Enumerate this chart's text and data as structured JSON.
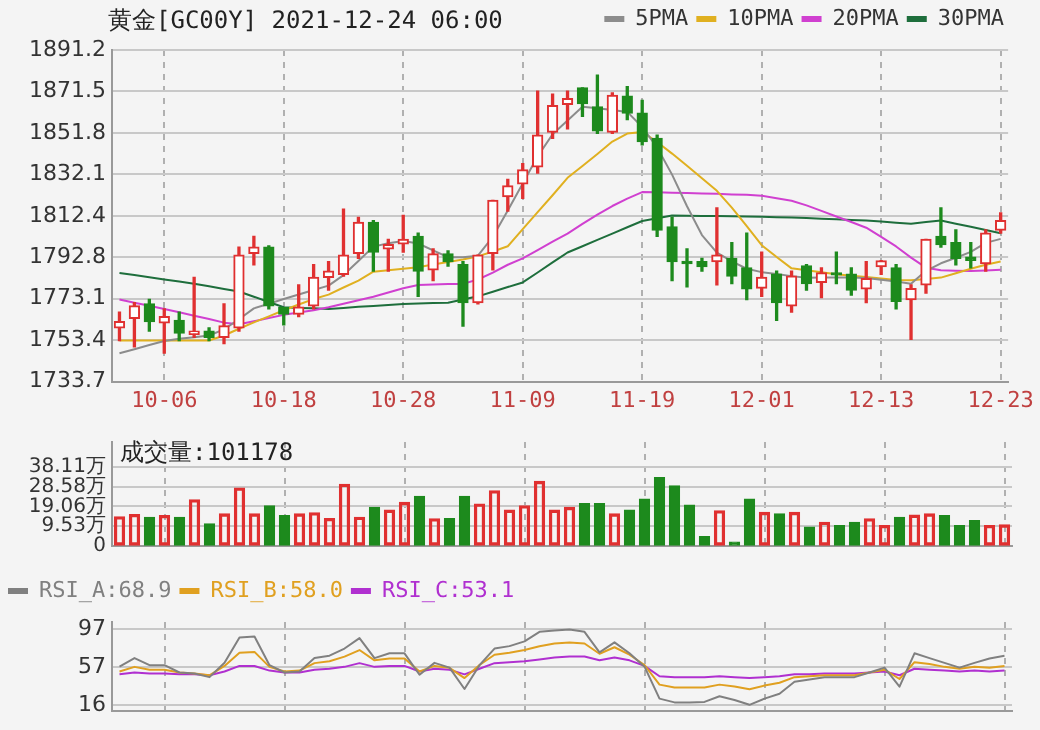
{
  "chart_data": [
    {
      "type": "candlestick",
      "title": "黄金[GC00Y] 2021-12-24 06:00",
      "categories": [
        null,
        null,
        null,
        "10-06",
        null,
        null,
        null,
        null,
        null,
        null,
        null,
        "10-18",
        null,
        null,
        null,
        null,
        null,
        null,
        null,
        "10-28",
        null,
        null,
        null,
        null,
        null,
        null,
        null,
        "11-09",
        null,
        null,
        null,
        null,
        null,
        null,
        null,
        "11-19",
        null,
        null,
        null,
        null,
        null,
        null,
        null,
        "12-01",
        null,
        null,
        null,
        null,
        null,
        null,
        null,
        "12-13",
        null,
        null,
        null,
        null,
        null,
        null,
        null,
        "12-23"
      ],
      "ohlc": [
        [
          1759.2,
          1766.7,
          1753.2,
          1762.2
        ],
        [
          1763.7,
          1771.2,
          1750.2,
          1769.7
        ],
        [
          1770.6,
          1772.7,
          1757.7,
          1762.2
        ],
        [
          1761.6,
          1768.2,
          1747.2,
          1764.6
        ],
        [
          1762.8,
          1766.7,
          1753.2,
          1756.8
        ],
        [
          1756.2,
          1783.2,
          1754.7,
          1757.7
        ],
        [
          1757.7,
          1759.2,
          1753.2,
          1754.7
        ],
        [
          1754.7,
          1770.6,
          1751.7,
          1760.1
        ],
        [
          1759.2,
          1797.6,
          1757.7,
          1793.7
        ],
        [
          1794.6,
          1802.7,
          1789.2,
          1797.6
        ],
        [
          1797.6,
          1798.2,
          1768.2,
          1769.7
        ],
        [
          1768.8,
          1768.8,
          1760.7,
          1765.8
        ],
        [
          1765.8,
          1779.6,
          1764.6,
          1769.1
        ],
        [
          1769.7,
          1789.2,
          1768.2,
          1783.2
        ],
        [
          1783.2,
          1790.7,
          1777.2,
          1786.2
        ],
        [
          1784.7,
          1815.6,
          1783.8,
          1793.7
        ],
        [
          1794.6,
          1811.7,
          1792.2,
          1809.3
        ],
        [
          1809.3,
          1810.2,
          1786.2,
          1795.2
        ],
        [
          1796.7,
          1801.2,
          1786.2,
          1798.8
        ],
        [
          1799.1,
          1812.6,
          1795.2,
          1801.2
        ],
        [
          1802.7,
          1804.2,
          1774.2,
          1786.2
        ],
        [
          1786.8,
          1796.7,
          1781.7,
          1794.3
        ],
        [
          1794.3,
          1795.8,
          1788.6,
          1790.7
        ],
        [
          1789.2,
          1790.7,
          1760.1,
          1771.2
        ],
        [
          1771.2,
          1793.7,
          1770.6,
          1793.7
        ],
        [
          1794.6,
          1819.8,
          1786.8,
          1819.8
        ],
        [
          1821.6,
          1829.7,
          1814.7,
          1826.7
        ],
        [
          1827.6,
          1837.2,
          1820.7,
          1834.2
        ],
        [
          1835.7,
          1871.7,
          1832.7,
          1850.7
        ],
        [
          1852.2,
          1870.2,
          1849.2,
          1864.8
        ],
        [
          1865.4,
          1871.7,
          1853.7,
          1868.1
        ],
        [
          1873.2,
          1873.2,
          1859.7,
          1865.7
        ],
        [
          1864.2,
          1879.2,
          1851.6,
          1852.8
        ],
        [
          1852.2,
          1870.8,
          1851.6,
          1869.6
        ],
        [
          1869.3,
          1873.8,
          1858.2,
          1861.2
        ],
        [
          1861.2,
          1867.2,
          1846.2,
          1847.7
        ],
        [
          1849.2,
          1850.7,
          1802.7,
          1805.7
        ],
        [
          1807.2,
          1811.7,
          1781.7,
          1790.7
        ],
        [
          1790.7,
          1796.7,
          1778.7,
          1789.8
        ],
        [
          1790.7,
          1792.2,
          1786.2,
          1788.3
        ],
        [
          1790.7,
          1816.2,
          1779.6,
          1793.7
        ],
        [
          1792.2,
          1799.7,
          1780.2,
          1783.8
        ],
        [
          1787.7,
          1804.2,
          1772.7,
          1777.8
        ],
        [
          1778.1,
          1795.2,
          1774.2,
          1783.2
        ],
        [
          1784.7,
          1786.2,
          1762.8,
          1771.2
        ],
        [
          1769.7,
          1786.2,
          1766.7,
          1783.8
        ],
        [
          1788.6,
          1789.2,
          1777.2,
          1780.2
        ],
        [
          1780.8,
          1787.7,
          1773.6,
          1785.3
        ],
        [
          1785.3,
          1795.2,
          1780.2,
          1784.4
        ],
        [
          1784.7,
          1787.7,
          1774.8,
          1777.2
        ],
        [
          1777.8,
          1790.7,
          1771.2,
          1782.6
        ],
        [
          1788.3,
          1791.2,
          1784.7,
          1791.0
        ],
        [
          1787.7,
          1789.2,
          1768.2,
          1771.8
        ],
        [
          1772.7,
          1779.6,
          1753.8,
          1777.8
        ],
        [
          1779.6,
          1801.2,
          1775.7,
          1801.2
        ],
        [
          1802.7,
          1816.2,
          1797.6,
          1798.8
        ],
        [
          1799.7,
          1805.7,
          1789.2,
          1792.2
        ],
        [
          1792.8,
          1799.7,
          1787.7,
          1791.3
        ],
        [
          1789.8,
          1805.7,
          1786.2,
          1804.2
        ],
        [
          1805.7,
          1813.8,
          1804.2,
          1810.2
        ]
      ],
      "colors": [
        "#e03030",
        "#e03030",
        "#1d8a1d",
        "#e03030",
        "#1d8a1d",
        "#e03030",
        "#1d8a1d",
        "#e03030",
        "#e03030",
        "#e03030",
        "#1d8a1d",
        "#1d8a1d",
        "#e03030",
        "#e03030",
        "#e03030",
        "#e03030",
        "#e03030",
        "#1d8a1d",
        "#e03030",
        "#e03030",
        "#1d8a1d",
        "#e03030",
        "#1d8a1d",
        "#1d8a1d",
        "#e03030",
        "#e03030",
        "#e03030",
        "#e03030",
        "#e03030",
        "#e03030",
        "#e03030",
        "#1d8a1d",
        "#1d8a1d",
        "#e03030",
        "#1d8a1d",
        "#1d8a1d",
        "#1d8a1d",
        "#1d8a1d",
        "#1d8a1d",
        "#1d8a1d",
        "#e03030",
        "#1d8a1d",
        "#1d8a1d",
        "#e03030",
        "#1d8a1d",
        "#e03030",
        "#1d8a1d",
        "#e03030",
        "#1d8a1d",
        "#1d8a1d",
        "#e03030",
        "#e03030",
        "#1d8a1d",
        "#e03030",
        "#e03030",
        "#1d8a1d",
        "#1d8a1d",
        "#1d8a1d",
        "#e03030",
        "#e03030"
      ],
      "series": [
        {
          "name": "5PMA",
          "type": "line",
          "color": "#8c8c8c",
          "values": [
            1747.2,
            1749.1,
            1751.1,
            1753,
            1754,
            1754.8,
            1755.6,
            1758.5,
            1763.3,
            1768.5,
            1770.7,
            1772.9,
            1775.1,
            1777.2,
            1779.3,
            1784.3,
            1791,
            1797.8,
            1799.4,
            1800.5,
            1799.3,
            1796,
            1792.8,
            1792.8,
            1793.5,
            1802.5,
            1815,
            1827.8,
            1840.7,
            1851.2,
            1857.7,
            1864.2,
            1863.5,
            1862.7,
            1861.8,
            1854.6,
            1844.9,
            1832,
            1817,
            1803.3,
            1795,
            1790.8,
            1787.3,
            1785.7,
            1784.8,
            1783.8,
            1783,
            1783.2,
            1783.2,
            1783.2,
            1782.9,
            1782.1,
            1781.2,
            1780.2,
            1786.3,
            1789.9,
            1792.5,
            1795.3,
            1799.6,
            1801.5
          ]
        },
        {
          "name": "10PMA",
          "type": "line",
          "color": "#e0b020",
          "values": [
            1753.2,
            1753.2,
            1753.2,
            1753.2,
            1753.2,
            1753.2,
            1753.2,
            1755.6,
            1758.8,
            1761.8,
            1764.7,
            1767.6,
            1770.3,
            1772.9,
            1775,
            1778.4,
            1781.7,
            1785.9,
            1786.6,
            1787.3,
            1788,
            1789.3,
            1790.5,
            1791.7,
            1793.2,
            1795.5,
            1798,
            1806.1,
            1814.2,
            1822.2,
            1830.5,
            1836.1,
            1841.8,
            1847.7,
            1851.5,
            1852.3,
            1847.5,
            1842,
            1836.2,
            1830.3,
            1824.3,
            1816.3,
            1807.5,
            1798.5,
            1792.9,
            1787.5,
            1786.6,
            1785.6,
            1784.7,
            1784,
            1783.4,
            1782.7,
            1782,
            1781.8,
            1782.4,
            1783.1,
            1785.2,
            1787.3,
            1789.2,
            1790.7
          ]
        },
        {
          "name": "20PMA",
          "type": "line",
          "color": "#d040d0",
          "values": [
            1772.7,
            1771.2,
            1769.7,
            1768.2,
            1766.6,
            1765,
            1763.4,
            1761.7,
            1760.9,
            1762.4,
            1763.9,
            1765.4,
            1766.5,
            1767.6,
            1769,
            1770.7,
            1772.3,
            1774,
            1776,
            1778,
            1779.6,
            1779.8,
            1780,
            1780.1,
            1782.2,
            1785.5,
            1789.2,
            1792.2,
            1796.2,
            1800.2,
            1804,
            1808.6,
            1813,
            1817.1,
            1820.6,
            1823.7,
            1823.6,
            1823.4,
            1823.3,
            1823.1,
            1822.9,
            1822.6,
            1822.4,
            1822,
            1820.8,
            1819.6,
            1817.4,
            1814.8,
            1812.1,
            1809.5,
            1806.8,
            1802.4,
            1797.9,
            1792.6,
            1787.8,
            1786.6,
            1786.4,
            1786.2,
            1786.5,
            1786.8
          ]
        },
        {
          "name": "30PMA",
          "type": "line",
          "color": "#1e6e3c",
          "values": [
            1785.3,
            1784.3,
            1783.3,
            1782.2,
            1781.2,
            1780.2,
            1779,
            1777.7,
            1776.5,
            1774,
            1771.5,
            1769,
            1768.7,
            1768.5,
            1768.2,
            1768.7,
            1769.2,
            1769.6,
            1770.1,
            1770.6,
            1770.8,
            1771,
            1771.2,
            1772.7,
            1774.2,
            1776.4,
            1778.6,
            1780.8,
            1785.5,
            1790.3,
            1795,
            1798,
            1801,
            1804,
            1807,
            1810,
            1811.3,
            1812.6,
            1812.5,
            1812.4,
            1812.3,
            1812.2,
            1812.1,
            1812,
            1811.8,
            1811.7,
            1811.4,
            1811.1,
            1810.8,
            1810.5,
            1810.2,
            1809.7,
            1809.2,
            1808.7,
            1809.5,
            1810.2,
            1808.7,
            1807.2,
            1805.7,
            1804.2
          ]
        }
      ],
      "legend": "top right",
      "marker": "none",
      "grid": true,
      "ylim": [
        1733.7,
        1891.2
      ],
      "yticks": [
        1733.7,
        1753.4,
        1773.1,
        1792.8,
        1812.4,
        1832.1,
        1851.8,
        1871.5,
        1891.2
      ]
    },
    {
      "type": "bar",
      "title": "成交量:101178",
      "tick_labels": "y",
      "categories": [
        null,
        null,
        null,
        null,
        null,
        null,
        null,
        null,
        null,
        null,
        null,
        null,
        null,
        null,
        null,
        null,
        null,
        null,
        null,
        null,
        null,
        null,
        null,
        null,
        null,
        null,
        null,
        null,
        null,
        null,
        null,
        null,
        null,
        null,
        null,
        null,
        null,
        null,
        null,
        null,
        null,
        null,
        null,
        null,
        null,
        null,
        null,
        null,
        null,
        null,
        null,
        null,
        null,
        null,
        null,
        null,
        null,
        null,
        null,
        null
      ],
      "values": [
        14.0,
        15.1,
        13.8,
        14.6,
        13.8,
        22.2,
        10.6,
        15.4,
        27.8,
        15.4,
        19.3,
        14.6,
        15.4,
        15.9,
        13.2,
        29.6,
        13.8,
        18.5,
        17.2,
        20.9,
        23.8,
        13.0,
        13.2,
        23.8,
        20.1,
        26.5,
        17.2,
        19.3,
        31.0,
        17.2,
        18.5,
        20.4,
        20.4,
        15.4,
        17.2,
        22.5,
        32.8,
        28.9,
        19.6,
        4.5,
        16.9,
        1.9,
        22.5,
        16.1,
        15.4,
        16.1,
        9.0,
        11.4,
        9.8,
        11.4,
        13.0,
        9.8,
        13.8,
        14.8,
        15.4,
        14.6,
        9.8,
        12.2,
        9.8,
        10.1
      ],
      "colors": [
        "#e03030",
        "#e03030",
        "#1d8a1d",
        "#e03030",
        "#1d8a1d",
        "#e03030",
        "#1d8a1d",
        "#e03030",
        "#e03030",
        "#e03030",
        "#1d8a1d",
        "#1d8a1d",
        "#e03030",
        "#e03030",
        "#e03030",
        "#e03030",
        "#e03030",
        "#1d8a1d",
        "#e03030",
        "#e03030",
        "#1d8a1d",
        "#e03030",
        "#1d8a1d",
        "#1d8a1d",
        "#e03030",
        "#e03030",
        "#e03030",
        "#e03030",
        "#e03030",
        "#e03030",
        "#e03030",
        "#1d8a1d",
        "#1d8a1d",
        "#e03030",
        "#1d8a1d",
        "#1d8a1d",
        "#1d8a1d",
        "#1d8a1d",
        "#1d8a1d",
        "#1d8a1d",
        "#e03030",
        "#1d8a1d",
        "#1d8a1d",
        "#e03030",
        "#1d8a1d",
        "#e03030",
        "#1d8a1d",
        "#e03030",
        "#1d8a1d",
        "#1d8a1d",
        "#e03030",
        "#e03030",
        "#1d8a1d",
        "#e03030",
        "#e03030",
        "#1d8a1d",
        "#1d8a1d",
        "#1d8a1d",
        "#e03030",
        "#e03030"
      ],
      "grid": true,
      "ylim": [
        0,
        50
      ],
      "yticks": [
        0,
        {
          "value": 9.53,
          "label": "9.53万"
        },
        {
          "value": 19.06,
          "label": "19.06万"
        },
        {
          "value": 28.58,
          "label": "28.58万"
        },
        {
          "value": 38.11,
          "label": "38.11万"
        }
      ]
    },
    {
      "type": "line",
      "tick_labels": "y",
      "categories": [
        null,
        null,
        null,
        null,
        null,
        null,
        null,
        null,
        null,
        null,
        null,
        null,
        null,
        null,
        null,
        null,
        null,
        null,
        null,
        null,
        null,
        null,
        null,
        null,
        null,
        null,
        null,
        null,
        null,
        null,
        null,
        null,
        null,
        null,
        null,
        null,
        null,
        null,
        null,
        null,
        null,
        null,
        null,
        null,
        null,
        null,
        null,
        null,
        null,
        null,
        null,
        null,
        null,
        null,
        null,
        null,
        null,
        null,
        null,
        null
      ],
      "series": [
        {
          "name": "RSI_A:68.9",
          "color": "#808080",
          "values": [
            57.2,
            66.4,
            58.8,
            58.8,
            51,
            50,
            46,
            61.3,
            88.3,
            89.4,
            58.8,
            51,
            52,
            66.4,
            69,
            76.6,
            87.8,
            66.4,
            71.5,
            71.5,
            48.6,
            61.3,
            56.2,
            33.3,
            58.8,
            76.6,
            79.2,
            84.3,
            94.5,
            96,
            97,
            94.5,
            72.5,
            83.2,
            71.5,
            57.2,
            23,
            19,
            19,
            19.5,
            25.6,
            21.5,
            16.4,
            23,
            28.2,
            41,
            43.4,
            46,
            46,
            46,
            51,
            56.2,
            35.8,
            71.5,
            66.4,
            61.3,
            56.2,
            61.3,
            66,
            68.9
          ]
        },
        {
          "name": "RSI_B:58.0",
          "color": "#e0a020",
          "values": [
            52,
            57,
            54,
            54,
            51,
            50,
            48,
            58,
            72,
            73,
            57,
            52,
            53,
            61,
            63,
            68,
            75,
            64,
            66,
            66,
            52,
            58,
            56,
            45,
            59,
            70,
            72,
            75,
            79,
            82,
            83,
            82,
            71,
            78,
            70,
            59,
            38,
            35,
            35,
            35,
            38,
            36,
            33,
            37,
            40,
            46,
            47,
            48,
            48,
            48,
            51,
            54,
            44,
            62,
            60,
            57,
            55,
            57,
            56,
            58.0
          ]
        },
        {
          "name": "RSI_C:53.1",
          "color": "#b030d0",
          "values": [
            49,
            51,
            50,
            50,
            49,
            49,
            48,
            52,
            58,
            58,
            53,
            51,
            51,
            54,
            55,
            57,
            61,
            57,
            58,
            58,
            52,
            55,
            54,
            49,
            55,
            61,
            62,
            63,
            65,
            67,
            68,
            68,
            64,
            67,
            64,
            58,
            47,
            46,
            46,
            46,
            47,
            46,
            45,
            46,
            47,
            49,
            49,
            50,
            50,
            50,
            51,
            52,
            48,
            55,
            54,
            53,
            52,
            53,
            52,
            53.1
          ]
        }
      ],
      "legend": "top left",
      "marker": "none",
      "grid": true,
      "ylim": [
        10,
        105
      ],
      "yticks": [
        16,
        57,
        97
      ]
    }
  ]
}
